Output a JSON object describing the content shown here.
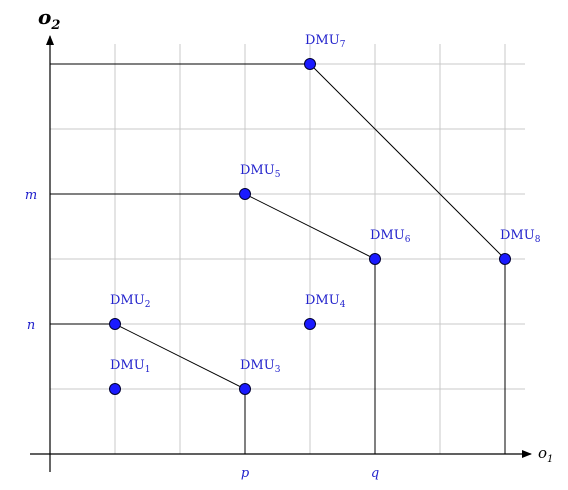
{
  "axes": {
    "y_label": "o",
    "y_label_sub": "2",
    "x_label": "o",
    "x_label_sub": "1"
  },
  "ticks": {
    "m": "m",
    "n": "n",
    "p": "p",
    "q": "q"
  },
  "grid": {
    "x_divisions": 7,
    "y_divisions": 6
  },
  "colors": {
    "point": "#1a1aff",
    "label": "#2222cc",
    "grid": "#c8c8c8"
  },
  "dmus": [
    {
      "name": "DMU",
      "index": "1",
      "x": 1,
      "y": 1
    },
    {
      "name": "DMU",
      "index": "2",
      "x": 1,
      "y": 2
    },
    {
      "name": "DMU",
      "index": "3",
      "x": 3,
      "y": 1
    },
    {
      "name": "DMU",
      "index": "4",
      "x": 4,
      "y": 2
    },
    {
      "name": "DMU",
      "index": "5",
      "x": 3,
      "y": 4
    },
    {
      "name": "DMU",
      "index": "6",
      "x": 5,
      "y": 3
    },
    {
      "name": "DMU",
      "index": "7",
      "x": 4,
      "y": 6
    },
    {
      "name": "DMU",
      "index": "8",
      "x": 7,
      "y": 3
    }
  ],
  "frontiers": [
    [
      [
        0,
        2
      ],
      [
        1,
        2
      ],
      [
        3,
        1
      ],
      [
        3,
        0
      ]
    ],
    [
      [
        0,
        4
      ],
      [
        3,
        4
      ],
      [
        5,
        3
      ],
      [
        5,
        0
      ]
    ],
    [
      [
        0,
        6
      ],
      [
        4,
        6
      ],
      [
        7,
        3
      ],
      [
        7,
        0
      ]
    ]
  ]
}
